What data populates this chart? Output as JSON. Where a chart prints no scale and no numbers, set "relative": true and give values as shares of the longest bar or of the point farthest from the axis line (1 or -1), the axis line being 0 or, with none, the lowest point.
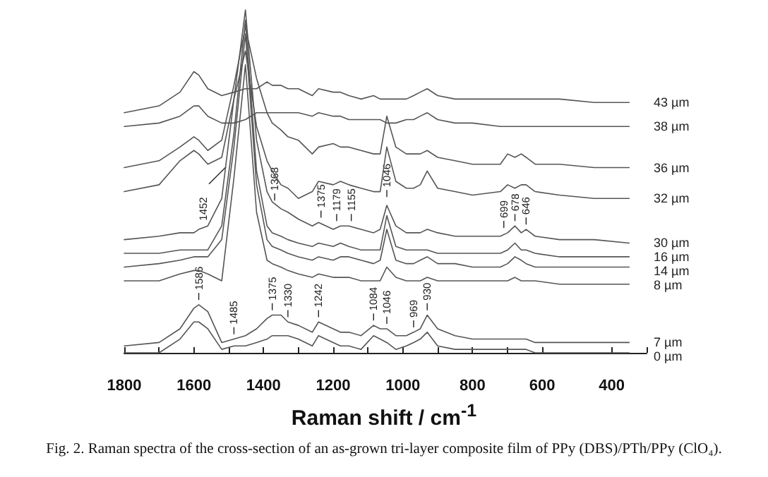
{
  "chart_data": {
    "type": "line",
    "relative": true,
    "marker": "none",
    "line_style": "solid",
    "xlabel": "Raman shift / cm$^{-1}$",
    "xlim": [
      1800,
      300
    ],
    "xticks": [
      1800,
      {
        "value": 1700,
        "label": null
      },
      1600,
      {
        "value": 1500,
        "label": null
      },
      1400,
      {
        "value": 1300,
        "label": null
      },
      1200,
      {
        "value": 1100,
        "label": null
      },
      1000,
      {
        "value": 900,
        "label": null
      },
      800,
      {
        "value": 700,
        "label": null
      },
      600,
      400,
      {
        "value": 300,
        "label": null
      }
    ],
    "x": [
      1800,
      1700,
      1640,
      1600,
      1586,
      1560,
      1520,
      1485,
      1452,
      1420,
      1390,
      1375,
      1350,
      1330,
      1300,
      1260,
      1242,
      1200,
      1179,
      1155,
      1120,
      1084,
      1065,
      1046,
      1020,
      990,
      969,
      950,
      930,
      900,
      850,
      800,
      720,
      699,
      678,
      660,
      646,
      620,
      550,
      450,
      350
    ],
    "series": [
      {
        "name": "43 µm",
        "color": "#555555",
        "values": [
          0.7,
          0.72,
          0.76,
          0.82,
          0.81,
          0.77,
          0.75,
          0.76,
          0.77,
          0.77,
          0.79,
          0.78,
          0.78,
          0.77,
          0.77,
          0.75,
          0.77,
          0.76,
          0.76,
          0.75,
          0.74,
          0.75,
          0.74,
          0.74,
          0.74,
          0.74,
          0.75,
          0.76,
          0.77,
          0.75,
          0.74,
          0.74,
          0.74,
          0.74,
          0.74,
          0.74,
          0.74,
          0.74,
          0.74,
          0.73,
          0.73
        ]
      },
      {
        "name": "38 µm",
        "color": "#555555",
        "values": [
          0.66,
          0.67,
          0.69,
          0.72,
          0.72,
          0.69,
          0.67,
          0.67,
          0.68,
          0.7,
          0.7,
          0.7,
          0.7,
          0.7,
          0.7,
          0.69,
          0.7,
          0.69,
          0.69,
          0.68,
          0.68,
          0.68,
          0.68,
          0.67,
          0.67,
          0.68,
          0.68,
          0.69,
          0.7,
          0.68,
          0.67,
          0.67,
          0.66,
          0.66,
          0.66,
          0.66,
          0.66,
          0.66,
          0.66,
          0.66,
          0.66
        ]
      },
      {
        "name": "36 µm",
        "color": "#555555",
        "values": [
          0.54,
          0.56,
          0.6,
          0.63,
          0.62,
          0.59,
          0.62,
          0.78,
          0.95,
          0.8,
          0.7,
          0.67,
          0.65,
          0.63,
          0.62,
          0.58,
          0.6,
          0.61,
          0.6,
          0.6,
          0.59,
          0.58,
          0.58,
          0.69,
          0.6,
          0.58,
          0.58,
          0.58,
          0.59,
          0.57,
          0.56,
          0.55,
          0.55,
          0.58,
          0.57,
          0.58,
          0.57,
          0.55,
          0.55,
          0.54,
          0.54
        ]
      },
      {
        "name": "32 µm",
        "color": "#555555",
        "values": [
          0.47,
          0.49,
          0.56,
          0.59,
          0.58,
          0.55,
          0.57,
          0.74,
          0.88,
          0.66,
          0.56,
          0.53,
          0.49,
          0.48,
          0.45,
          0.47,
          0.5,
          0.49,
          0.5,
          0.49,
          0.48,
          0.47,
          0.47,
          0.6,
          0.5,
          0.48,
          0.48,
          0.49,
          0.53,
          0.48,
          0.47,
          0.46,
          0.47,
          0.49,
          0.48,
          0.49,
          0.49,
          0.47,
          0.46,
          0.45,
          0.45
        ]
      },
      {
        "name": "30 µm",
        "color": "#555555",
        "values": [
          0.33,
          0.34,
          0.35,
          0.35,
          0.36,
          0.37,
          0.45,
          0.74,
          1,
          0.62,
          0.47,
          0.44,
          0.42,
          0.41,
          0.39,
          0.37,
          0.38,
          0.36,
          0.37,
          0.37,
          0.36,
          0.35,
          0.36,
          0.43,
          0.37,
          0.35,
          0.35,
          0.35,
          0.36,
          0.35,
          0.34,
          0.34,
          0.34,
          0.35,
          0.37,
          0.35,
          0.36,
          0.34,
          0.33,
          0.33,
          0.32
        ]
      },
      {
        "name": "16 µm",
        "color": "#555555",
        "values": [
          0.29,
          0.29,
          0.3,
          0.3,
          0.3,
          0.3,
          0.37,
          0.64,
          0.97,
          0.53,
          0.37,
          0.35,
          0.34,
          0.33,
          0.32,
          0.31,
          0.32,
          0.31,
          0.32,
          0.31,
          0.3,
          0.3,
          0.3,
          0.4,
          0.31,
          0.3,
          0.3,
          0.3,
          0.3,
          0.29,
          0.29,
          0.29,
          0.29,
          0.3,
          0.32,
          0.3,
          0.3,
          0.29,
          0.28,
          0.28,
          0.28
        ]
      },
      {
        "name": "14 µm",
        "color": "#555555",
        "values": [
          0.25,
          0.26,
          0.27,
          0.28,
          0.28,
          0.28,
          0.33,
          0.6,
          0.93,
          0.49,
          0.33,
          0.31,
          0.3,
          0.29,
          0.28,
          0.27,
          0.28,
          0.27,
          0.28,
          0.28,
          0.27,
          0.26,
          0.27,
          0.36,
          0.27,
          0.26,
          0.26,
          0.27,
          0.28,
          0.26,
          0.26,
          0.25,
          0.25,
          0.26,
          0.28,
          0.27,
          0.26,
          0.25,
          0.25,
          0.25,
          0.25
        ]
      },
      {
        "name": "8 µm",
        "color": "#555555",
        "values": [
          0.21,
          0.21,
          0.23,
          0.24,
          0.24,
          0.23,
          0.21,
          0.51,
          0.84,
          0.41,
          0.27,
          0.26,
          0.25,
          0.24,
          0.23,
          0.22,
          0.23,
          0.22,
          0.22,
          0.22,
          0.21,
          0.21,
          0.21,
          0.25,
          0.22,
          0.21,
          0.21,
          0.21,
          0.22,
          0.21,
          0.21,
          0.21,
          0.21,
          0.21,
          0.22,
          0.21,
          0.21,
          0.21,
          0.2,
          0.2,
          0.2
        ]
      },
      {
        "name": "7 µm",
        "color": "#555555",
        "values": [
          0.02,
          0.03,
          0.07,
          0.13,
          0.14,
          0.12,
          0.03,
          0.04,
          0.05,
          0.07,
          0.1,
          0.11,
          0.11,
          0.09,
          0.08,
          0.06,
          0.09,
          0.07,
          0.06,
          0.06,
          0.05,
          0.08,
          0.07,
          0.07,
          0.05,
          0.05,
          0.06,
          0.07,
          0.11,
          0.07,
          0.05,
          0.04,
          0.04,
          0.04,
          0.04,
          0.04,
          0.04,
          0.03,
          0.03,
          0.03,
          0.03
        ]
      },
      {
        "name": "0 µm",
        "color": "#555555",
        "values": [
          0,
          0,
          0.04,
          0.09,
          0.09,
          0.07,
          0.01,
          0.02,
          0.02,
          0.03,
          0.04,
          0.05,
          0.05,
          0.05,
          0.04,
          0.02,
          0.05,
          0.03,
          0.02,
          0.02,
          0.01,
          0.05,
          0.04,
          0.03,
          0.01,
          0.02,
          0.03,
          0.04,
          0.06,
          0.02,
          0.01,
          0.01,
          0.01,
          0.01,
          0.01,
          0.01,
          0.01,
          0,
          0,
          0,
          0
        ]
      }
    ],
    "annotations": [
      {
        "text": "1452",
        "x": 1500,
        "y": 0.55
      },
      {
        "text": "1368",
        "x": 1368,
        "y": 0.44
      },
      {
        "text": "1375",
        "x": 1235,
        "y": 0.39
      },
      {
        "text": "1179",
        "x": 1190,
        "y": 0.38
      },
      {
        "text": "1155",
        "x": 1148,
        "y": 0.38
      },
      {
        "text": "1046",
        "x": 1046,
        "y": 0.45
      },
      {
        "text": "699",
        "x": 710,
        "y": 0.36
      },
      {
        "text": "678",
        "x": 678,
        "y": 0.38
      },
      {
        "text": "646",
        "x": 646,
        "y": 0.37
      },
      {
        "text": "1586",
        "x": 1586,
        "y": 0.15
      },
      {
        "text": "1485",
        "x": 1485,
        "y": 0.05
      },
      {
        "text": "1375",
        "x": 1375,
        "y": 0.12
      },
      {
        "text": "1330",
        "x": 1330,
        "y": 0.1
      },
      {
        "text": "1242",
        "x": 1242,
        "y": 0.1
      },
      {
        "text": "1084",
        "x": 1084,
        "y": 0.09
      },
      {
        "text": "1046",
        "x": 1046,
        "y": 0.08
      },
      {
        "text": "969",
        "x": 969,
        "y": 0.07
      },
      {
        "text": "930",
        "x": 930,
        "y": 0.12
      },
      "Fig. 2. Raman spectra of the cross-section of an as-grown tri-layer composite film of PPy (DBS)/PTh/PPy (ClO₄)."
    ]
  }
}
